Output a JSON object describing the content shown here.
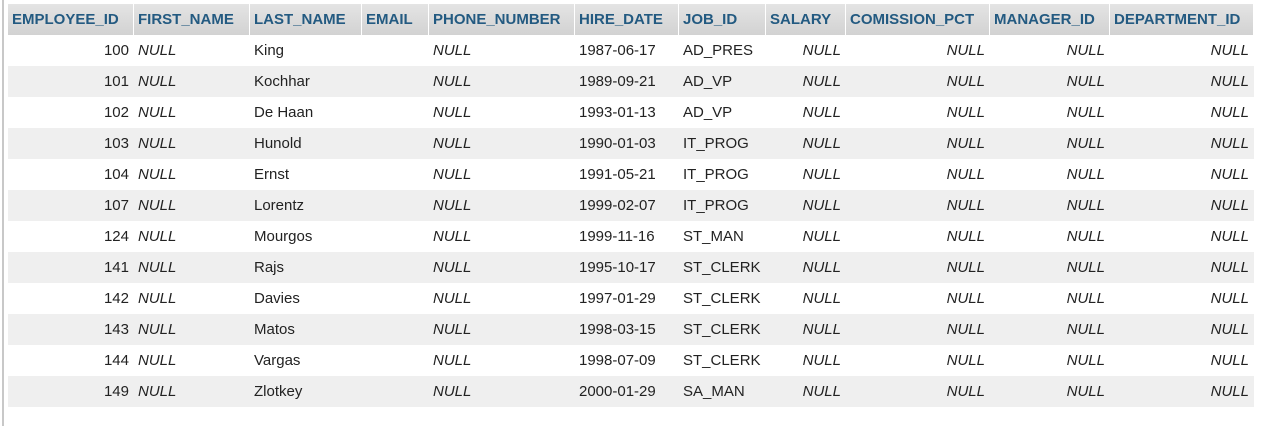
{
  "columns": [
    "EMPLOYEE_ID",
    "FIRST_NAME",
    "LAST_NAME",
    "EMAIL",
    "PHONE_NUMBER",
    "HIRE_DATE",
    "JOB_ID",
    "SALARY",
    "COMISSION_PCT",
    "MANAGER_ID",
    "DEPARTMENT_ID"
  ],
  "null_text": "NULL",
  "rows": [
    {
      "employee_id": "100",
      "first_name": "NULL",
      "last_name": "King",
      "email": "",
      "phone_number": "NULL",
      "hire_date": "1987-06-17",
      "job_id": "AD_PRES",
      "salary": "NULL",
      "comission_pct": "NULL",
      "manager_id": "NULL",
      "department_id": "NULL"
    },
    {
      "employee_id": "101",
      "first_name": "NULL",
      "last_name": "Kochhar",
      "email": "",
      "phone_number": "NULL",
      "hire_date": "1989-09-21",
      "job_id": "AD_VP",
      "salary": "NULL",
      "comission_pct": "NULL",
      "manager_id": "NULL",
      "department_id": "NULL"
    },
    {
      "employee_id": "102",
      "first_name": "NULL",
      "last_name": "De Haan",
      "email": "",
      "phone_number": "NULL",
      "hire_date": "1993-01-13",
      "job_id": "AD_VP",
      "salary": "NULL",
      "comission_pct": "NULL",
      "manager_id": "NULL",
      "department_id": "NULL"
    },
    {
      "employee_id": "103",
      "first_name": "NULL",
      "last_name": "Hunold",
      "email": "",
      "phone_number": "NULL",
      "hire_date": "1990-01-03",
      "job_id": "IT_PROG",
      "salary": "NULL",
      "comission_pct": "NULL",
      "manager_id": "NULL",
      "department_id": "NULL"
    },
    {
      "employee_id": "104",
      "first_name": "NULL",
      "last_name": "Ernst",
      "email": "",
      "phone_number": "NULL",
      "hire_date": "1991-05-21",
      "job_id": "IT_PROG",
      "salary": "NULL",
      "comission_pct": "NULL",
      "manager_id": "NULL",
      "department_id": "NULL"
    },
    {
      "employee_id": "107",
      "first_name": "NULL",
      "last_name": "Lorentz",
      "email": "",
      "phone_number": "NULL",
      "hire_date": "1999-02-07",
      "job_id": "IT_PROG",
      "salary": "NULL",
      "comission_pct": "NULL",
      "manager_id": "NULL",
      "department_id": "NULL"
    },
    {
      "employee_id": "124",
      "first_name": "NULL",
      "last_name": "Mourgos",
      "email": "",
      "phone_number": "NULL",
      "hire_date": "1999-11-16",
      "job_id": "ST_MAN",
      "salary": "NULL",
      "comission_pct": "NULL",
      "manager_id": "NULL",
      "department_id": "NULL"
    },
    {
      "employee_id": "141",
      "first_name": "NULL",
      "last_name": "Rajs",
      "email": "",
      "phone_number": "NULL",
      "hire_date": "1995-10-17",
      "job_id": "ST_CLERK",
      "salary": "NULL",
      "comission_pct": "NULL",
      "manager_id": "NULL",
      "department_id": "NULL"
    },
    {
      "employee_id": "142",
      "first_name": "NULL",
      "last_name": "Davies",
      "email": "",
      "phone_number": "NULL",
      "hire_date": "1997-01-29",
      "job_id": "ST_CLERK",
      "salary": "NULL",
      "comission_pct": "NULL",
      "manager_id": "NULL",
      "department_id": "NULL"
    },
    {
      "employee_id": "143",
      "first_name": "NULL",
      "last_name": "Matos",
      "email": "",
      "phone_number": "NULL",
      "hire_date": "1998-03-15",
      "job_id": "ST_CLERK",
      "salary": "NULL",
      "comission_pct": "NULL",
      "manager_id": "NULL",
      "department_id": "NULL"
    },
    {
      "employee_id": "144",
      "first_name": "NULL",
      "last_name": "Vargas",
      "email": "",
      "phone_number": "NULL",
      "hire_date": "1998-07-09",
      "job_id": "ST_CLERK",
      "salary": "NULL",
      "comission_pct": "NULL",
      "manager_id": "NULL",
      "department_id": "NULL"
    },
    {
      "employee_id": "149",
      "first_name": "NULL",
      "last_name": "Zlotkey",
      "email": "",
      "phone_number": "NULL",
      "hire_date": "2000-01-29",
      "job_id": "SA_MAN",
      "salary": "NULL",
      "comission_pct": "NULL",
      "manager_id": "NULL",
      "department_id": "NULL"
    }
  ],
  "colors": {
    "header_text": "#235a81",
    "header_bg": "#d6d6d6",
    "row_alt_bg": "#efefef",
    "null_text": "#8a8a8a"
  }
}
